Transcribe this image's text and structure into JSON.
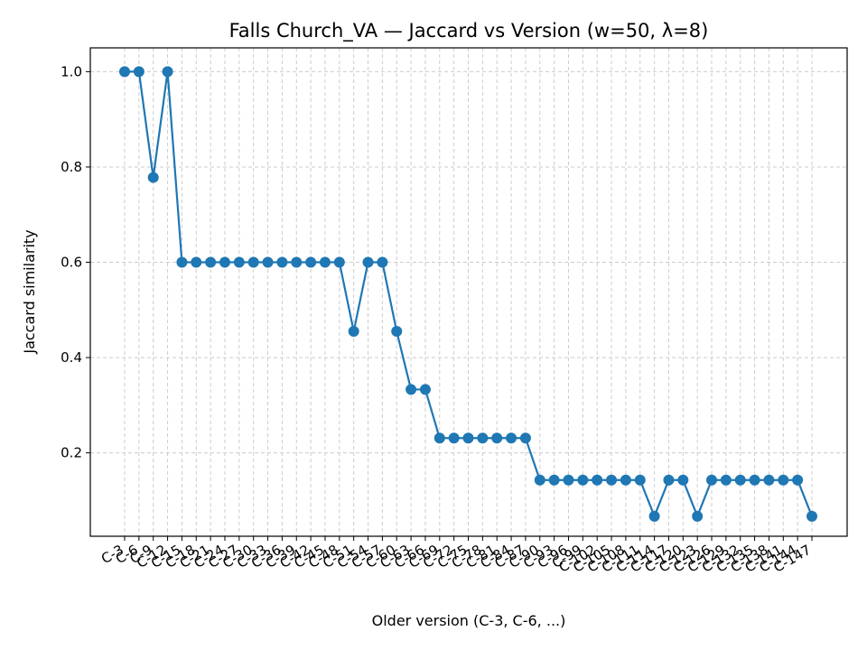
{
  "chart_data": {
    "type": "line",
    "title": "Falls Church_VA — Jaccard vs Version (w=50, λ=8)",
    "xlabel": "Older version (C-3, C-6, ...)",
    "ylabel": "Jaccard similarity",
    "ylim": [
      0.025,
      1.05
    ],
    "yticks": [
      0.2,
      0.4,
      0.6,
      0.8,
      1.0
    ],
    "ytick_labels": [
      "0.2",
      "0.4",
      "0.6",
      "0.8",
      "1.0"
    ],
    "grid": true,
    "categories": [
      "C-3",
      "C-6",
      "C-9",
      "C-12",
      "C-15",
      "C-18",
      "C-21",
      "C-24",
      "C-27",
      "C-30",
      "C-33",
      "C-36",
      "C-39",
      "C-42",
      "C-45",
      "C-48",
      "C-51",
      "C-54",
      "C-57",
      "C-60",
      "C-63",
      "C-66",
      "C-69",
      "C-72",
      "C-75",
      "C-78",
      "C-81",
      "C-84",
      "C-87",
      "C-90",
      "C-93",
      "C-96",
      "C-99",
      "C-102",
      "C-105",
      "C-108",
      "C-111",
      "C-114",
      "C-117",
      "C-120",
      "C-123",
      "C-126",
      "C-129",
      "C-132",
      "C-135",
      "C-138",
      "C-141",
      "C-144",
      "C-147"
    ],
    "series": [
      {
        "values": [
          1.0,
          1.0,
          0.778,
          1.0,
          0.6,
          0.6,
          0.6,
          0.6,
          0.6,
          0.6,
          0.6,
          0.6,
          0.6,
          0.6,
          0.6,
          0.6,
          0.455,
          0.6,
          0.6,
          0.455,
          0.333,
          0.333,
          0.231,
          0.231,
          0.231,
          0.231,
          0.231,
          0.231,
          0.231,
          0.143,
          0.143,
          0.143,
          0.143,
          0.143,
          0.143,
          0.143,
          0.143,
          0.067,
          0.143,
          0.143,
          0.067,
          0.143,
          0.143,
          0.143,
          0.143,
          0.143,
          0.143,
          0.143,
          0.067
        ],
        "color": "#1f77b4"
      }
    ]
  }
}
